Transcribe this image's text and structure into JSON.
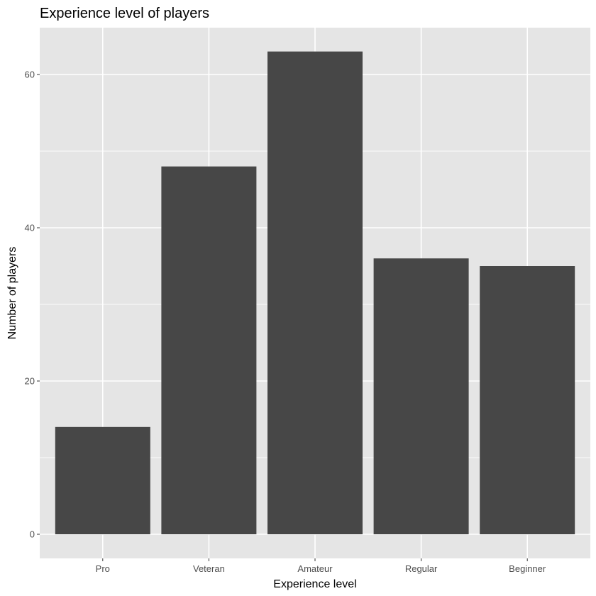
{
  "chart_data": {
    "type": "bar",
    "title": "Experience level of players",
    "xlabel": "Experience level",
    "ylabel": "Number of players",
    "categories": [
      "Pro",
      "Veteran",
      "Amateur",
      "Regular",
      "Beginner"
    ],
    "values": [
      14,
      48,
      63,
      36,
      35
    ],
    "ylim": [
      0,
      66
    ],
    "yticks": [
      0,
      20,
      40,
      60
    ],
    "grid": true,
    "colors": {
      "panel_background": "#e5e5e5",
      "grid_major": "#ffffff",
      "bar_fill": "#474747",
      "text": "#000000",
      "tick_text": "#4d4d4d"
    }
  }
}
